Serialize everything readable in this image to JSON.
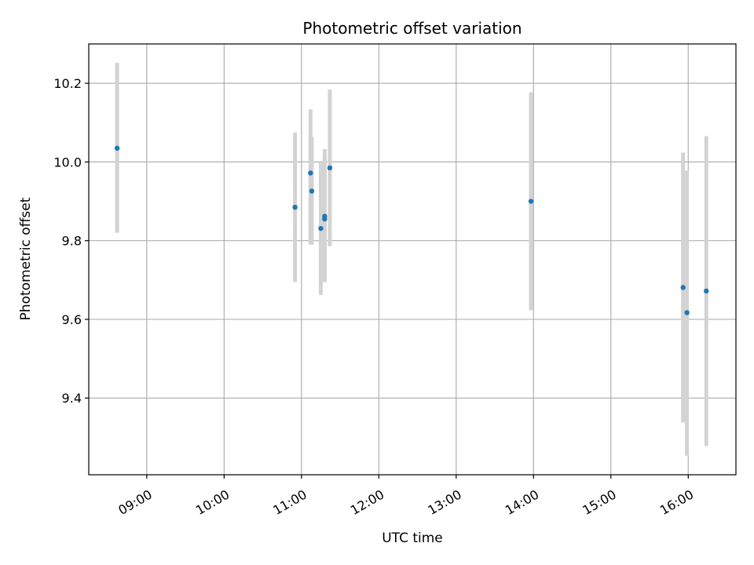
{
  "chart_data": {
    "type": "scatter",
    "title": "Photometric offset variation",
    "xlabel": "UTC time",
    "ylabel": "Photometric offset",
    "x_ticks": [
      "09:00",
      "10:00",
      "11:00",
      "12:00",
      "13:00",
      "14:00",
      "15:00",
      "16:00"
    ],
    "y_ticks": [
      "9.4",
      "9.6",
      "9.8",
      "10.0",
      "10.2"
    ],
    "xlim": [
      "08:15",
      "16:37"
    ],
    "ylim": [
      9.205,
      10.3
    ],
    "grid": true,
    "marker_color": "#1f77b4",
    "errorbar_color": "#d3d3d3",
    "points": [
      {
        "x": "08:37",
        "y": 10.035,
        "yerr_low": 9.82,
        "yerr_high": 10.252
      },
      {
        "x": "10:55",
        "y": 9.885,
        "yerr_low": 9.695,
        "yerr_high": 10.075
      },
      {
        "x": "11:07",
        "y": 9.972,
        "yerr_low": 9.79,
        "yerr_high": 10.134
      },
      {
        "x": "11:08",
        "y": 9.926,
        "yerr_low": 9.79,
        "yerr_high": 10.064
      },
      {
        "x": "11:15",
        "y": 9.831,
        "yerr_low": 9.662,
        "yerr_high": 9.998
      },
      {
        "x": "11:18",
        "y": 9.862,
        "yerr_low": 9.695,
        "yerr_high": 10.033
      },
      {
        "x": "11:18",
        "y": 9.855,
        "yerr_low": 9.695,
        "yerr_high": 10.015
      },
      {
        "x": "11:22",
        "y": 9.985,
        "yerr_low": 9.786,
        "yerr_high": 10.184
      },
      {
        "x": "13:58",
        "y": 9.9,
        "yerr_low": 9.623,
        "yerr_high": 10.177
      },
      {
        "x": "15:56",
        "y": 9.681,
        "yerr_low": 9.338,
        "yerr_high": 10.024
      },
      {
        "x": "15:59",
        "y": 9.617,
        "yerr_low": 9.253,
        "yerr_high": 9.978
      },
      {
        "x": "16:14",
        "y": 9.672,
        "yerr_low": 9.278,
        "yerr_high": 10.066
      }
    ]
  }
}
